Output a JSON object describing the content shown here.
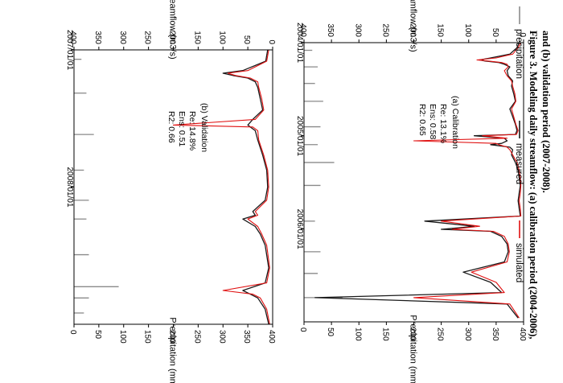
{
  "caption": {
    "line1": "Figure 3. Modeling daily streamflow: (a) calibration period (2004-2006),",
    "line2": "and (b) validation period (2007-2008)."
  },
  "legend": {
    "precipitation": "precipitation",
    "measured": "measured",
    "simulated": "simulated"
  },
  "colors": {
    "precipitation": "#8a8a8a",
    "measured": "#1a1a1a",
    "simulated": "#e01010"
  },
  "chart_data": [
    {
      "type": "line",
      "panel": "a",
      "title": "(a) Calibration",
      "stats": {
        "Re": "13.1%",
        "Ens": "0.58",
        "R2": "0.65"
      },
      "ylabel": "Streamflow (m3/s)",
      "y2label": "Precipitation (mm)",
      "ylim": [
        0,
        400
      ],
      "y2lim": [
        400,
        0
      ],
      "yticks": [
        0,
        50,
        100,
        150,
        200,
        250,
        300,
        350,
        400
      ],
      "y2ticks": [
        400,
        350,
        300,
        250,
        200,
        150,
        100,
        50,
        0
      ],
      "xlim": [
        "2004/01/01",
        "2006/12/31"
      ],
      "xticks": [
        "2004/01/01",
        "2005/01/01",
        "2006/01/01"
      ],
      "series": [
        {
          "name": "measured",
          "x_day": [
            0,
            20,
            45,
            60,
            68,
            72,
            78,
            85,
            95,
            110,
            130,
            150,
            170,
            200,
            230,
            260,
            290,
            320,
            345,
            360,
            365,
            375,
            385,
            395,
            400,
            410,
            420,
            440,
            470,
            500,
            530,
            560,
            590,
            620,
            650,
            680,
            700,
            720,
            725,
            732,
            740,
            760,
            790,
            820,
            860,
            900,
            940,
            980,
            1000,
            1025,
            1080
          ],
          "values": [
            8,
            12,
            25,
            60,
            80,
            70,
            45,
            35,
            25,
            30,
            28,
            20,
            22,
            18,
            15,
            25,
            20,
            15,
            12,
            15,
            90,
            35,
            30,
            40,
            60,
            25,
            20,
            22,
            15,
            10,
            8,
            6,
            8,
            10,
            8,
            6,
            180,
            90,
            110,
            150,
            60,
            40,
            30,
            28,
            35,
            110,
            60,
            40,
            380,
            30,
            10
          ]
        },
        {
          "name": "simulated",
          "x_day": [
            0,
            20,
            45,
            60,
            68,
            72,
            78,
            85,
            95,
            110,
            130,
            150,
            170,
            200,
            230,
            260,
            290,
            320,
            345,
            360,
            365,
            375,
            385,
            395,
            400,
            410,
            420,
            440,
            470,
            500,
            530,
            560,
            590,
            620,
            650,
            680,
            700,
            720,
            725,
            732,
            740,
            760,
            790,
            820,
            860,
            900,
            940,
            980,
            1000,
            1025,
            1080
          ],
          "values": [
            5,
            10,
            20,
            50,
            85,
            65,
            40,
            30,
            28,
            35,
            30,
            22,
            20,
            16,
            14,
            22,
            18,
            14,
            10,
            13,
            75,
            30,
            200,
            50,
            45,
            30,
            25,
            20,
            12,
            8,
            6,
            5,
            6,
            8,
            6,
            5,
            150,
            80,
            100,
            130,
            55,
            35,
            28,
            26,
            30,
            95,
            50,
            35,
            200,
            25,
            8
          ]
        },
        {
          "name": "precipitation",
          "x_day": [
            30,
            95,
            160,
            230,
            330,
            400,
            470,
            560,
            700,
            820,
            905,
            1000
          ],
          "values": [
            15,
            25,
            20,
            35,
            30,
            25,
            55,
            30,
            20,
            30,
            25,
            70
          ]
        }
      ]
    },
    {
      "type": "line",
      "panel": "b",
      "title": "(b) Validation",
      "stats": {
        "Re": "14.8%",
        "Ens": "0.51",
        "R2": "0.66"
      },
      "ylabel": "Streamflow (m3/s)",
      "y2label": "Precipitation (mm)",
      "ylim": [
        0,
        400
      ],
      "y2lim": [
        400,
        0
      ],
      "yticks": [
        0,
        50,
        100,
        150,
        200,
        250,
        300,
        350,
        400
      ],
      "y2ticks": [
        400,
        350,
        300,
        250,
        200,
        150,
        100,
        50,
        0
      ],
      "xlim": [
        "2007/01/01",
        "2008/12/31"
      ],
      "xticks": [
        "2007/01/01",
        "2008/01/01"
      ],
      "series": [
        {
          "name": "measured",
          "x_day": [
            0,
            30,
            55,
            62,
            68,
            75,
            85,
            100,
            130,
            160,
            185,
            200,
            205,
            215,
            240,
            280,
            320,
            365,
            400,
            430,
            440,
            450,
            470,
            490,
            520,
            580,
            620,
            640,
            650,
            660,
            690,
            730
          ],
          "values": [
            10,
            14,
            60,
            100,
            80,
            50,
            35,
            30,
            25,
            20,
            40,
            50,
            45,
            35,
            30,
            20,
            12,
            10,
            15,
            40,
            35,
            60,
            35,
            25,
            15,
            8,
            15,
            60,
            45,
            30,
            15,
            8
          ]
        },
        {
          "name": "simulated",
          "x_day": [
            0,
            30,
            55,
            62,
            68,
            75,
            85,
            100,
            130,
            160,
            185,
            200,
            205,
            215,
            240,
            280,
            320,
            365,
            400,
            430,
            440,
            450,
            470,
            490,
            520,
            580,
            620,
            640,
            650,
            660,
            690,
            730
          ],
          "values": [
            8,
            12,
            50,
            90,
            75,
            45,
            30,
            28,
            22,
            18,
            35,
            200,
            40,
            30,
            28,
            18,
            10,
            8,
            12,
            35,
            30,
            50,
            30,
            22,
            12,
            6,
            12,
            100,
            40,
            25,
            12,
            6
          ]
        },
        {
          "name": "precipitation",
          "x_day": [
            25,
            115,
            225,
            320,
            400,
            450,
            545,
            630,
            660,
            700
          ],
          "values": [
            15,
            25,
            40,
            20,
            30,
            25,
            30,
            90,
            30,
            20
          ]
        }
      ]
    }
  ]
}
